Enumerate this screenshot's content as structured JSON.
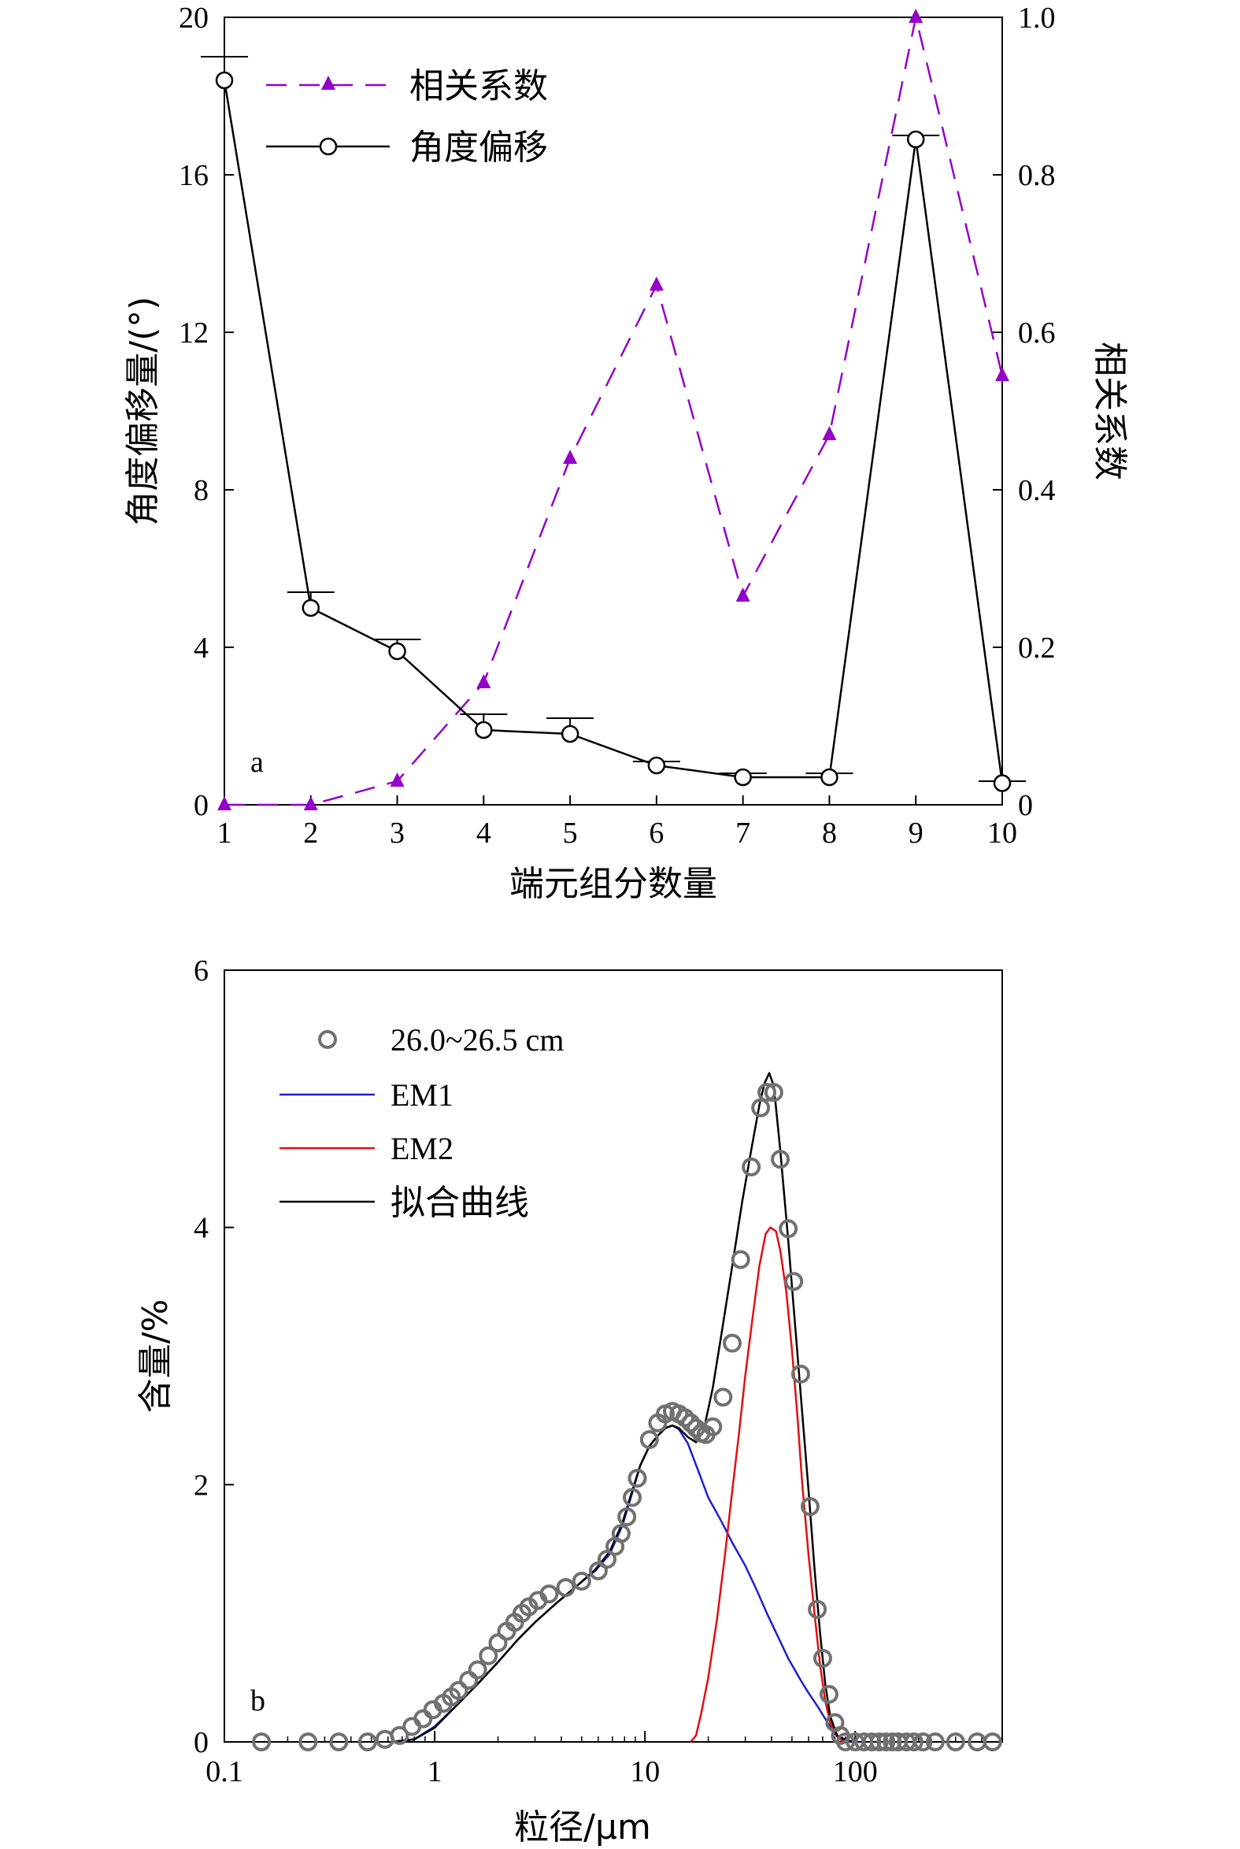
{
  "chart_data": [
    {
      "panel_label": "a",
      "type": "line",
      "xlabel": "端元组分数量",
      "ylabel_left": "角度偏移量/(°)",
      "ylabel_right": "相关系数",
      "x": [
        1,
        2,
        3,
        4,
        5,
        6,
        7,
        8,
        9,
        10
      ],
      "xlim": [
        1,
        10
      ],
      "ylim_left": [
        0,
        20
      ],
      "ylim_right": [
        0,
        1.0
      ],
      "xticks": [
        "1",
        "2",
        "3",
        "4",
        "5",
        "6",
        "7",
        "8",
        "9",
        "10"
      ],
      "yticks_left": [
        "0",
        "4",
        "8",
        "12",
        "16",
        "20"
      ],
      "yticks_right": [
        "0",
        "0.2",
        "0.4",
        "0.6",
        "0.8",
        "1.0"
      ],
      "legend_position": "top-left",
      "series": [
        {
          "name": "相关系数",
          "axis": "right",
          "style": "dashed",
          "marker": "triangle",
          "color": "#9400c8",
          "values": [
            0.0,
            0.0,
            0.03,
            0.155,
            0.44,
            0.66,
            0.265,
            0.47,
            1.0,
            0.545
          ]
        },
        {
          "name": "角度偏移",
          "axis": "left",
          "style": "solid",
          "marker": "circle-open",
          "color": "#000000",
          "values": [
            18.4,
            5.0,
            3.9,
            1.9,
            1.8,
            1.0,
            0.7,
            0.7,
            16.9,
            0.55
          ],
          "error_caps": [
            19.0,
            5.4,
            4.2,
            2.3,
            2.2,
            1.1,
            0.8,
            0.8,
            17.0,
            0.6
          ]
        }
      ]
    },
    {
      "panel_label": "b",
      "type": "line",
      "xlabel": "粒径/μm",
      "ylabel": "含量/%",
      "xscale": "log",
      "xlim": [
        0.1,
        500
      ],
      "ylim": [
        0,
        6
      ],
      "xticks": [
        "0.1",
        "1",
        "10",
        "100"
      ],
      "yticks": [
        "0",
        "2",
        "4",
        "6"
      ],
      "legend_position": "top-left",
      "series": [
        {
          "name": "26.0~26.5 cm",
          "style": "markers",
          "marker": "circle-open",
          "color": "#707070",
          "points": [
            [
              0.15,
              0
            ],
            [
              0.25,
              0
            ],
            [
              0.35,
              0
            ],
            [
              0.48,
              0
            ],
            [
              0.58,
              0.02
            ],
            [
              0.68,
              0.05
            ],
            [
              0.78,
              0.12
            ],
            [
              0.88,
              0.18
            ],
            [
              0.98,
              0.25
            ],
            [
              1.1,
              0.3
            ],
            [
              1.2,
              0.35
            ],
            [
              1.3,
              0.4
            ],
            [
              1.45,
              0.48
            ],
            [
              1.6,
              0.56
            ],
            [
              1.8,
              0.67
            ],
            [
              2.0,
              0.77
            ],
            [
              2.2,
              0.86
            ],
            [
              2.4,
              0.93
            ],
            [
              2.6,
              1.0
            ],
            [
              2.8,
              1.05
            ],
            [
              3.1,
              1.1
            ],
            [
              3.5,
              1.15
            ],
            [
              4.2,
              1.2
            ],
            [
              5.0,
              1.25
            ],
            [
              6.0,
              1.33
            ],
            [
              6.6,
              1.42
            ],
            [
              7.2,
              1.52
            ],
            [
              7.7,
              1.62
            ],
            [
              8.2,
              1.75
            ],
            [
              8.7,
              1.9
            ],
            [
              9.2,
              2.05
            ],
            [
              10.5,
              2.35
            ],
            [
              11.5,
              2.48
            ],
            [
              12.5,
              2.55
            ],
            [
              13.5,
              2.57
            ],
            [
              14.5,
              2.55
            ],
            [
              15.5,
              2.52
            ],
            [
              16.5,
              2.48
            ],
            [
              17.5,
              2.44
            ],
            [
              18.5,
              2.4
            ],
            [
              19.5,
              2.39
            ],
            [
              21.0,
              2.45
            ],
            [
              23.5,
              2.68
            ],
            [
              26.0,
              3.1
            ],
            [
              28.5,
              3.75
            ],
            [
              32.0,
              4.47
            ],
            [
              35.5,
              4.93
            ],
            [
              38.0,
              5.05
            ],
            [
              41.0,
              5.05
            ],
            [
              44.0,
              4.53
            ],
            [
              48.0,
              3.99
            ],
            [
              51.0,
              3.58
            ],
            [
              55.0,
              2.86
            ],
            [
              61.0,
              1.83
            ],
            [
              66.0,
              1.03
            ],
            [
              70.0,
              0.65
            ],
            [
              75.0,
              0.37
            ],
            [
              80.0,
              0.15
            ],
            [
              85.0,
              0.05
            ],
            [
              90.0,
              0
            ],
            [
              100,
              0
            ],
            [
              110,
              0
            ],
            [
              120,
              0
            ],
            [
              130,
              0
            ],
            [
              140,
              0
            ],
            [
              150,
              0
            ],
            [
              160,
              0
            ],
            [
              175,
              0
            ],
            [
              190,
              0
            ],
            [
              210,
              0
            ],
            [
              240,
              0
            ],
            [
              300,
              0
            ],
            [
              380,
              0
            ],
            [
              450,
              0
            ]
          ]
        },
        {
          "name": "EM1",
          "style": "solid",
          "color": "#1f1fd0",
          "points": [
            [
              0.62,
              0
            ],
            [
              0.8,
              0.02
            ],
            [
              1.0,
              0.12
            ],
            [
              1.3,
              0.3
            ],
            [
              1.6,
              0.45
            ],
            [
              2.0,
              0.62
            ],
            [
              2.5,
              0.8
            ],
            [
              3.0,
              0.93
            ],
            [
              3.8,
              1.08
            ],
            [
              4.8,
              1.22
            ],
            [
              5.8,
              1.33
            ],
            [
              6.8,
              1.46
            ],
            [
              7.8,
              1.68
            ],
            [
              8.5,
              1.88
            ],
            [
              9.5,
              2.15
            ],
            [
              10.5,
              2.3
            ],
            [
              11.5,
              2.38
            ],
            [
              12.5,
              2.44
            ],
            [
              13.5,
              2.46
            ],
            [
              14.5,
              2.43
            ],
            [
              16.0,
              2.32
            ],
            [
              18.0,
              2.1
            ],
            [
              20.0,
              1.9
            ],
            [
              23.0,
              1.72
            ],
            [
              26.0,
              1.55
            ],
            [
              30.0,
              1.37
            ],
            [
              34.0,
              1.18
            ],
            [
              38.0,
              1.0
            ],
            [
              42.0,
              0.85
            ],
            [
              48.0,
              0.65
            ],
            [
              55.0,
              0.48
            ],
            [
              60.0,
              0.38
            ],
            [
              66.0,
              0.28
            ],
            [
              72.0,
              0.18
            ],
            [
              80.0,
              0.06
            ],
            [
              88.0,
              0.01
            ],
            [
              95.0,
              0
            ]
          ]
        },
        {
          "name": "EM2",
          "style": "solid",
          "color": "#e01010",
          "points": [
            [
              16.5,
              0
            ],
            [
              17.5,
              0.05
            ],
            [
              18.5,
              0.22
            ],
            [
              20.0,
              0.5
            ],
            [
              22.0,
              0.95
            ],
            [
              24.0,
              1.45
            ],
            [
              26.0,
              1.95
            ],
            [
              28.0,
              2.4
            ],
            [
              30.0,
              2.85
            ],
            [
              32.5,
              3.3
            ],
            [
              35.0,
              3.7
            ],
            [
              37.5,
              3.95
            ],
            [
              39.5,
              4.0
            ],
            [
              42.0,
              3.97
            ],
            [
              44.0,
              3.82
            ],
            [
              47.0,
              3.5
            ],
            [
              50.0,
              3.05
            ],
            [
              53.0,
              2.55
            ],
            [
              56.0,
              2.0
            ],
            [
              60.0,
              1.45
            ],
            [
              64.0,
              1.0
            ],
            [
              68.0,
              0.6
            ],
            [
              72.0,
              0.32
            ],
            [
              76.0,
              0.15
            ],
            [
              82.0,
              0.04
            ],
            [
              88.0,
              0
            ]
          ]
        },
        {
          "name": "拟合曲线",
          "style": "solid",
          "color": "#000000",
          "points": [
            [
              0.62,
              0
            ],
            [
              0.8,
              0.02
            ],
            [
              1.0,
              0.11
            ],
            [
              1.3,
              0.3
            ],
            [
              1.6,
              0.45
            ],
            [
              2.0,
              0.62
            ],
            [
              2.5,
              0.8
            ],
            [
              3.0,
              0.93
            ],
            [
              3.8,
              1.08
            ],
            [
              4.8,
              1.22
            ],
            [
              5.8,
              1.34
            ],
            [
              6.8,
              1.48
            ],
            [
              7.8,
              1.7
            ],
            [
              8.5,
              1.9
            ],
            [
              9.5,
              2.15
            ],
            [
              10.5,
              2.3
            ],
            [
              11.5,
              2.38
            ],
            [
              12.5,
              2.44
            ],
            [
              13.5,
              2.46
            ],
            [
              14.5,
              2.44
            ],
            [
              16.0,
              2.37
            ],
            [
              17.5,
              2.33
            ],
            [
              19.0,
              2.42
            ],
            [
              21.0,
              2.75
            ],
            [
              23.0,
              3.15
            ],
            [
              26.0,
              3.7
            ],
            [
              29.0,
              4.2
            ],
            [
              32.0,
              4.6
            ],
            [
              35.0,
              4.95
            ],
            [
              37.0,
              5.12
            ],
            [
              39.0,
              5.2
            ],
            [
              41.0,
              5.1
            ],
            [
              44.0,
              4.6
            ],
            [
              48.0,
              3.9
            ],
            [
              52.0,
              3.2
            ],
            [
              56.0,
              2.55
            ],
            [
              60.0,
              1.95
            ],
            [
              64.0,
              1.35
            ],
            [
              68.0,
              0.85
            ],
            [
              72.0,
              0.45
            ],
            [
              76.0,
              0.2
            ],
            [
              82.0,
              0.05
            ],
            [
              92.0,
              0.01
            ],
            [
              100.0,
              0.0
            ]
          ]
        }
      ]
    }
  ]
}
